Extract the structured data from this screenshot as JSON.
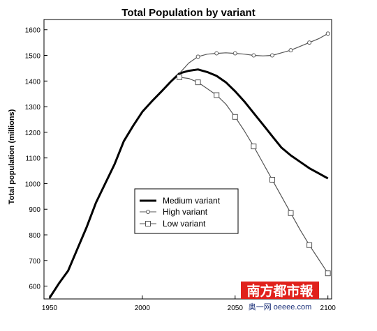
{
  "chart_data": {
    "type": "line",
    "title": "Total Population by variant",
    "xlabel": "",
    "ylabel": "Total population (millions)",
    "xlim": [
      1947,
      2102
    ],
    "ylim": [
      550,
      1640
    ],
    "xticks": [
      1950,
      2000,
      2050,
      2100
    ],
    "x_tick_labels": [
      "1950",
      "2000",
      "2050",
      "2100"
    ],
    "yticks": [
      600,
      700,
      800,
      900,
      1000,
      1100,
      1200,
      1300,
      1400,
      1500,
      1600
    ],
    "grid": false,
    "legend_position": "lower-center",
    "series": [
      {
        "name": "Medium variant",
        "color": "#000000",
        "marker": "none",
        "line_width": "thick",
        "x": [
          1950,
          1955,
          1960,
          1965,
          1970,
          1975,
          1980,
          1985,
          1990,
          1995,
          2000,
          2005,
          2010,
          2015,
          2020,
          2025,
          2030,
          2035,
          2040,
          2045,
          2050,
          2055,
          2060,
          2065,
          2070,
          2075,
          2080,
          2085,
          2090,
          2095,
          2100
        ],
        "y": [
          554,
          610,
          660,
          745,
          830,
          925,
          1000,
          1075,
          1165,
          1225,
          1280,
          1320,
          1357,
          1395,
          1430,
          1440,
          1445,
          1435,
          1420,
          1395,
          1360,
          1320,
          1275,
          1230,
          1185,
          1140,
          1110,
          1085,
          1060,
          1040,
          1020
        ]
      },
      {
        "name": "High variant",
        "color": "#555555",
        "marker": "circle",
        "x": [
          2020,
          2025,
          2030,
          2035,
          2040,
          2045,
          2050,
          2055,
          2060,
          2065,
          2070,
          2075,
          2080,
          2085,
          2090,
          2095,
          2100
        ],
        "y": [
          1430,
          1470,
          1495,
          1505,
          1508,
          1510,
          1508,
          1505,
          1500,
          1498,
          1500,
          1510,
          1520,
          1535,
          1550,
          1565,
          1585
        ],
        "marker_x": [
          2030,
          2040,
          2050,
          2060,
          2070,
          2080,
          2090,
          2100
        ]
      },
      {
        "name": "Low variant",
        "color": "#555555",
        "marker": "square",
        "x": [
          2020,
          2025,
          2030,
          2035,
          2040,
          2045,
          2050,
          2055,
          2060,
          2065,
          2070,
          2075,
          2080,
          2085,
          2090,
          2095,
          2100
        ],
        "y": [
          1415,
          1410,
          1395,
          1370,
          1345,
          1310,
          1260,
          1205,
          1145,
          1080,
          1015,
          950,
          885,
          820,
          760,
          705,
          650
        ],
        "marker_x": [
          2020,
          2030,
          2040,
          2050,
          2060,
          2070,
          2080,
          2090,
          2100
        ]
      }
    ]
  },
  "watermark": {
    "name": "南方都市報",
    "subtitle": "奥一网 oeeee.com",
    "bg_color": "#e0211b",
    "text_color": "#ffffff"
  }
}
